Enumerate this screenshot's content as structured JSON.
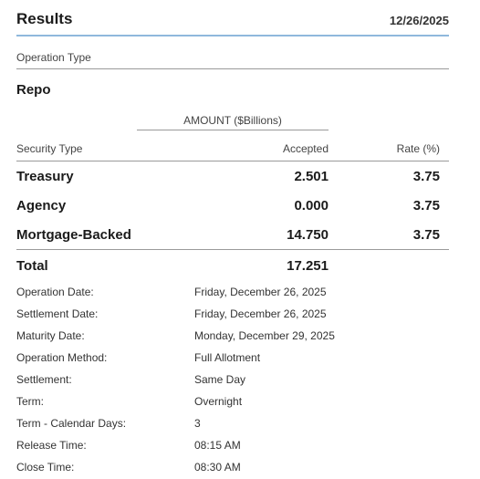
{
  "header": {
    "title": "Results",
    "date": "12/26/2025"
  },
  "operation_type": {
    "label": "Operation Type",
    "value": "Repo"
  },
  "table": {
    "amount_header": "AMOUNT ($Billions)",
    "columns": {
      "security_type": "Security Type",
      "accepted": "Accepted",
      "rate": "Rate (%)"
    },
    "rows": [
      {
        "name": "Treasury",
        "accepted": "2.501",
        "rate": "3.75"
      },
      {
        "name": "Agency",
        "accepted": "0.000",
        "rate": "3.75"
      },
      {
        "name": "Mortgage-Backed",
        "accepted": "14.750",
        "rate": "3.75"
      }
    ],
    "total": {
      "name": "Total",
      "accepted": "17.251"
    }
  },
  "details": [
    {
      "label": "Operation Date:",
      "value": "Friday, December 26, 2025"
    },
    {
      "label": "Settlement Date:",
      "value": "Friday, December 26, 2025"
    },
    {
      "label": "Maturity Date:",
      "value": "Monday, December 29, 2025"
    },
    {
      "label": "Operation Method:",
      "value": "Full Allotment"
    },
    {
      "label": "Settlement:",
      "value": "Same Day"
    },
    {
      "label": "Term:",
      "value": "Overnight"
    },
    {
      "label": "Term - Calendar Days:",
      "value": "3"
    },
    {
      "label": "Release Time:",
      "value": "08:15 AM"
    },
    {
      "label": "Close Time:",
      "value": "08:30 AM"
    }
  ],
  "colors": {
    "header_rule": "#8fb8dc",
    "divider": "#9a9a9a",
    "text": "#222222"
  }
}
